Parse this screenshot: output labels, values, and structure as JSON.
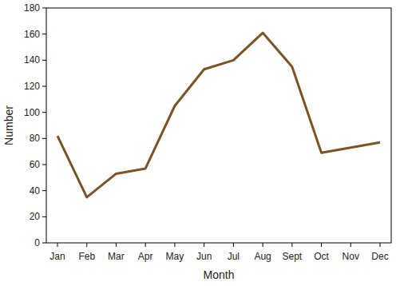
{
  "chart_data": {
    "type": "line",
    "x_label": "Month",
    "y_label": "Number",
    "categories": [
      "Jan",
      "Feb",
      "Mar",
      "Apr",
      "May",
      "Jun",
      "Jul",
      "Aug",
      "Sept",
      "Oct",
      "Nov",
      "Dec"
    ],
    "values": [
      82,
      35,
      53,
      57,
      105,
      133,
      140,
      161,
      135,
      69,
      73,
      77
    ],
    "color": "#7a5426",
    "ylim": [
      0,
      180
    ],
    "yticks": [
      0,
      20,
      40,
      60,
      80,
      100,
      120,
      140,
      160,
      180
    ],
    "grid": false
  }
}
